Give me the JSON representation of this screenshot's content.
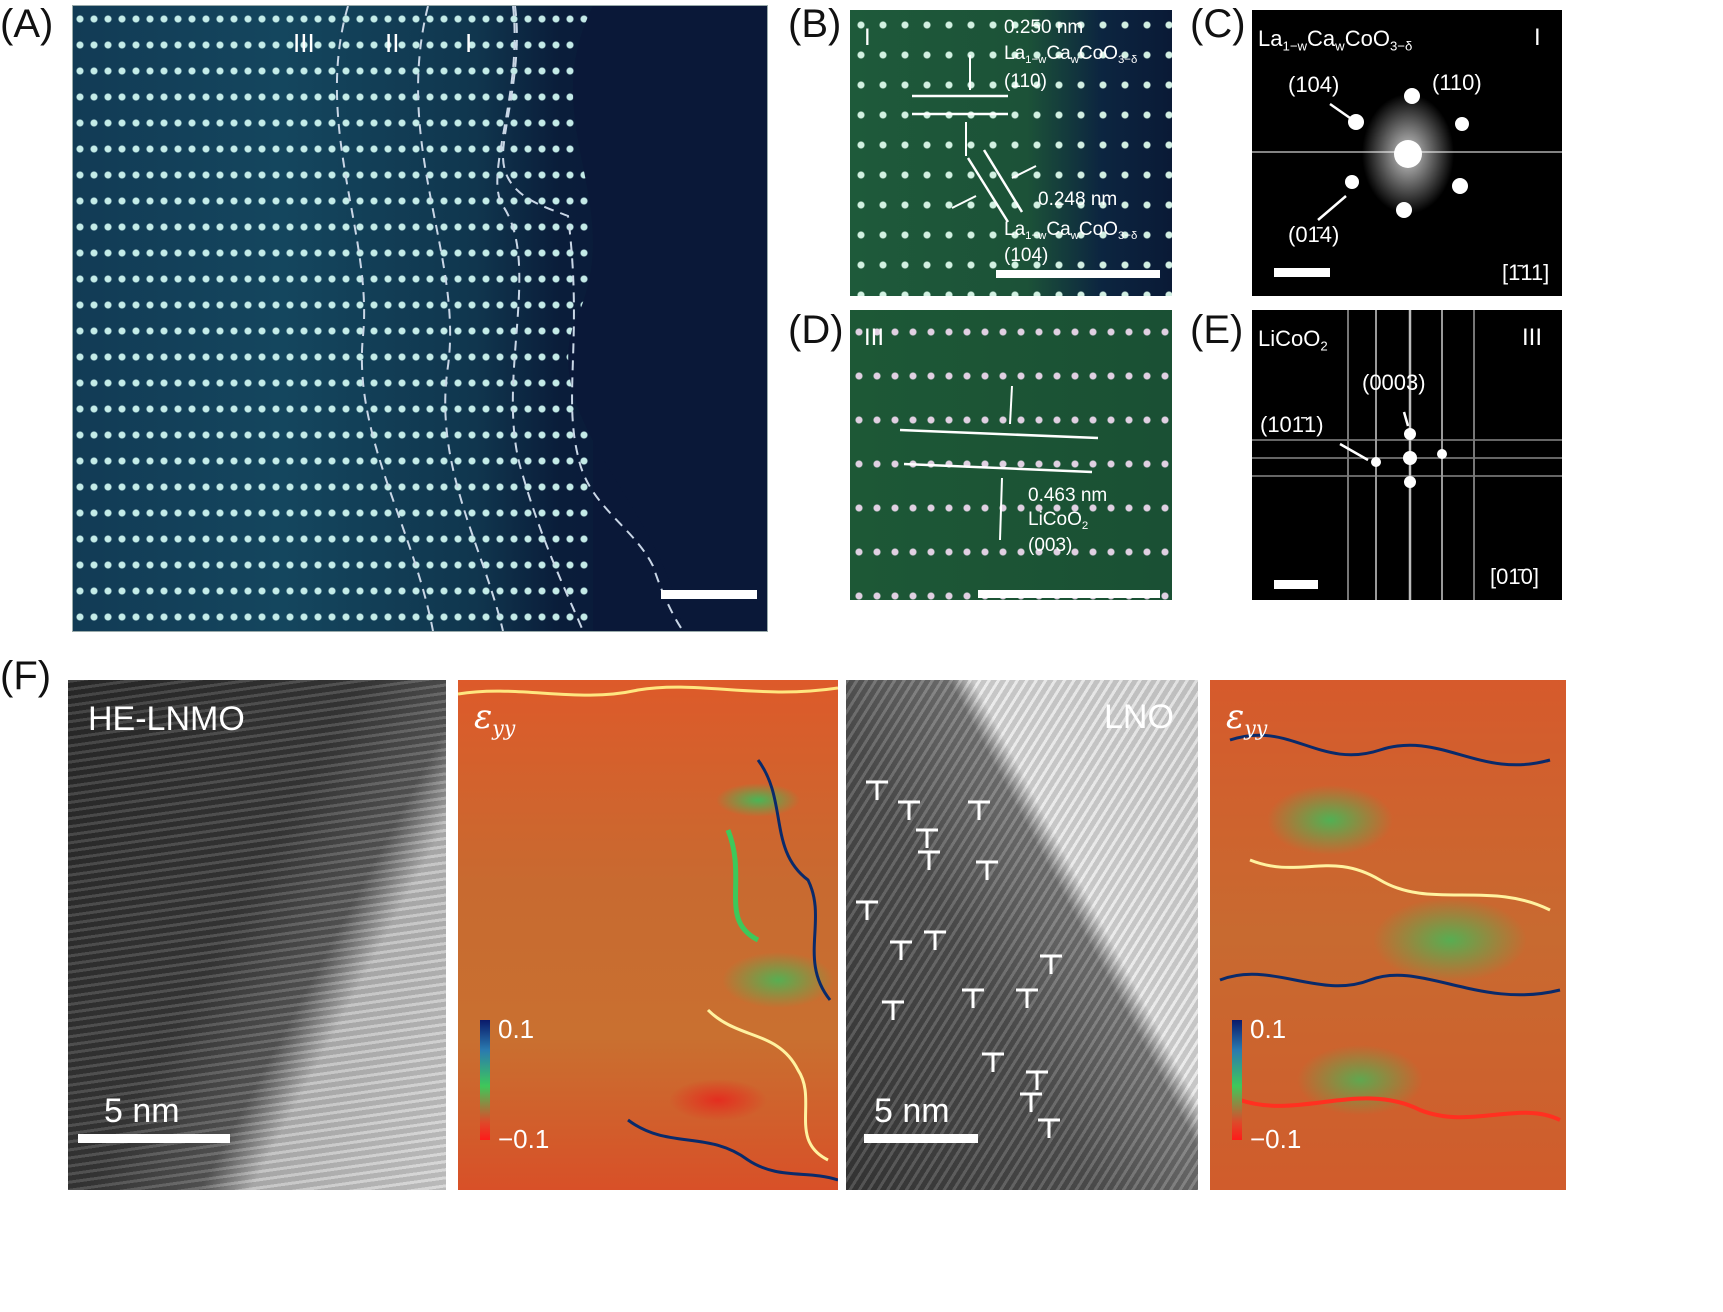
{
  "panel_labels": {
    "a": "(A)",
    "b": "(B)",
    "c": "(C)",
    "d": "(D)",
    "e": "(E)",
    "f": "(F)"
  },
  "panel_a": {
    "regions": [
      "III",
      "II",
      "I"
    ]
  },
  "panel_b": {
    "region": "I",
    "spacing_top": "0.250 nm",
    "material_top": {
      "pre": "La",
      "sub1": "1−w",
      "mid": "Ca",
      "sub2": "w",
      "post": "CoO",
      "sub3": "3−δ"
    },
    "plane_top": "(110)",
    "spacing_bottom": "0.248 nm",
    "material_bottom": {
      "pre": "La",
      "sub1": "1−w",
      "mid": "Ca",
      "sub2": "w",
      "post": "CoO",
      "sub3": "3−δ"
    },
    "plane_bottom": "(104)"
  },
  "panel_c": {
    "material": {
      "pre": "La",
      "sub1": "1−w",
      "mid": "Ca",
      "sub2": "w",
      "post": "CoO",
      "sub3": "3−δ"
    },
    "region": "I",
    "spot_104": "(104)",
    "spot_110": "(110)",
    "spot_0m14": "(01̄4)",
    "zone_axis": "[1̄11]"
  },
  "panel_d": {
    "region": "III",
    "spacing": "0.463 nm",
    "material": {
      "pre": "LiCoO",
      "sub": "2"
    },
    "plane": "(003)"
  },
  "panel_e": {
    "material": {
      "pre": "LiCoO",
      "sub": "2"
    },
    "region": "III",
    "spot_0003": "(0003)",
    "spot_10m11": "(101̄1)",
    "zone_axis": "[01̄0]"
  },
  "panel_f": {
    "hrtem1_label": "HE-LNMO",
    "hrtem1_scale": "5 nm",
    "strain_symbol": "ε",
    "strain_subscript": "yy",
    "colorbar_max": "0.1",
    "colorbar_min": "−0.1",
    "hrtem2_label": "LNO",
    "hrtem2_scale": "5 nm"
  },
  "colors": {
    "stem_bg": "#0b1b3a",
    "strain_bg": "#d9552a",
    "strain_green": "#3fbf5a",
    "hrtem_dark": "#2e2e2e",
    "hrtem_light": "#d8d8d8"
  }
}
